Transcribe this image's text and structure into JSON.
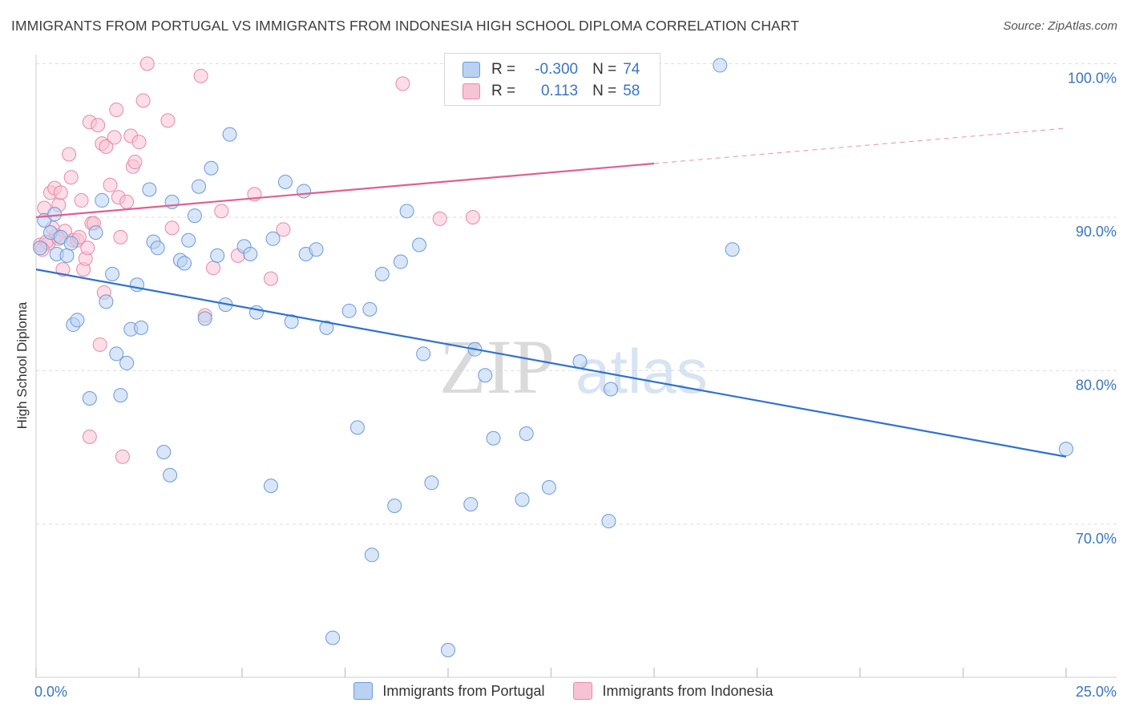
{
  "title": "IMMIGRANTS FROM PORTUGAL VS IMMIGRANTS FROM INDONESIA HIGH SCHOOL DIPLOMA CORRELATION CHART",
  "source": "Source: ZipAtlas.com",
  "watermark": {
    "zip": "ZIP",
    "atlas": "atlas"
  },
  "legend": {
    "r_label": "R =",
    "n_label": "N =",
    "portugal": {
      "r": "-0.300",
      "n": "74"
    },
    "indonesia": {
      "r": "0.113",
      "n": "58"
    }
  },
  "colors": {
    "portugal_fill": "#b9d2f2",
    "portugal_stroke": "#6a9ad8",
    "portugal_line": "#2f72cf",
    "indonesia_fill": "#f7c3d4",
    "indonesia_stroke": "#e889a8",
    "indonesia_line": "#e0608e",
    "tick_label": "#3a75c4",
    "grid": "#dddddd"
  },
  "chart_data": {
    "type": "scatter",
    "title": "IMMIGRANTS FROM PORTUGAL VS IMMIGRANTS FROM INDONESIA HIGH SCHOOL DIPLOMA CORRELATION CHART",
    "xlabel": "",
    "ylabel": "High School Diploma",
    "xlim": [
      0,
      25
    ],
    "ylim": [
      60,
      100
    ],
    "x_tick_labels": [
      "0.0%",
      "25.0%"
    ],
    "y_ticks": [
      70,
      80,
      90,
      100
    ],
    "y_tick_labels": [
      "70.0%",
      "80.0%",
      "90.0%",
      "100.0%"
    ],
    "grid": true,
    "legend_position": "bottom",
    "series": [
      {
        "name": "Immigrants from Portugal",
        "r": -0.3,
        "n": 74,
        "trend": {
          "x": [
            0,
            25
          ],
          "y": [
            86.6,
            74.4
          ]
        },
        "points": [
          [
            0.1,
            88.0
          ],
          [
            0.2,
            89.8
          ],
          [
            0.35,
            89.0
          ],
          [
            0.45,
            90.2
          ],
          [
            0.5,
            87.6
          ],
          [
            0.6,
            88.7
          ],
          [
            0.75,
            87.5
          ],
          [
            0.85,
            88.3
          ],
          [
            0.9,
            83.0
          ],
          [
            1.0,
            83.3
          ],
          [
            1.3,
            78.2
          ],
          [
            1.45,
            89.0
          ],
          [
            1.6,
            91.1
          ],
          [
            1.7,
            84.5
          ],
          [
            1.85,
            86.3
          ],
          [
            1.95,
            81.1
          ],
          [
            2.05,
            78.4
          ],
          [
            2.2,
            80.5
          ],
          [
            2.3,
            82.7
          ],
          [
            2.45,
            85.6
          ],
          [
            2.55,
            82.8
          ],
          [
            2.75,
            91.8
          ],
          [
            2.85,
            88.4
          ],
          [
            2.95,
            88.0
          ],
          [
            3.1,
            74.7
          ],
          [
            3.25,
            73.2
          ],
          [
            3.3,
            91.0
          ],
          [
            3.5,
            87.2
          ],
          [
            3.6,
            87.0
          ],
          [
            3.7,
            88.5
          ],
          [
            3.85,
            90.1
          ],
          [
            3.95,
            92.0
          ],
          [
            4.1,
            83.4
          ],
          [
            4.25,
            93.2
          ],
          [
            4.4,
            87.5
          ],
          [
            4.6,
            84.3
          ],
          [
            4.7,
            95.4
          ],
          [
            5.05,
            88.1
          ],
          [
            5.2,
            87.6
          ],
          [
            5.35,
            83.8
          ],
          [
            5.7,
            72.5
          ],
          [
            5.75,
            88.6
          ],
          [
            6.05,
            92.3
          ],
          [
            6.2,
            83.2
          ],
          [
            6.5,
            91.7
          ],
          [
            6.55,
            87.6
          ],
          [
            6.8,
            87.9
          ],
          [
            7.05,
            82.8
          ],
          [
            7.2,
            62.6
          ],
          [
            7.6,
            83.9
          ],
          [
            7.8,
            76.3
          ],
          [
            8.1,
            84.0
          ],
          [
            8.15,
            68.0
          ],
          [
            8.4,
            86.3
          ],
          [
            8.7,
            71.2
          ],
          [
            8.85,
            87.1
          ],
          [
            9.0,
            90.4
          ],
          [
            9.3,
            88.2
          ],
          [
            9.4,
            81.1
          ],
          [
            9.6,
            72.7
          ],
          [
            10.0,
            61.8
          ],
          [
            10.55,
            71.3
          ],
          [
            10.65,
            81.4
          ],
          [
            10.9,
            79.7
          ],
          [
            11.1,
            75.6
          ],
          [
            11.8,
            71.6
          ],
          [
            11.9,
            75.9
          ],
          [
            12.45,
            72.4
          ],
          [
            13.2,
            80.6
          ],
          [
            13.9,
            70.2
          ],
          [
            13.95,
            78.8
          ],
          [
            14.0,
            99.9
          ],
          [
            16.6,
            99.9
          ],
          [
            16.9,
            87.9
          ],
          [
            25.0,
            74.9
          ]
        ]
      },
      {
        "name": "Immigrants from Indonesia",
        "r": 0.113,
        "n": 58,
        "trend": {
          "x": [
            0,
            15
          ],
          "y": [
            90.0,
            93.5
          ]
        },
        "trend_dashed": {
          "x": [
            15,
            25
          ],
          "y": [
            93.5,
            95.8
          ]
        },
        "points": [
          [
            0.1,
            88.2
          ],
          [
            0.2,
            90.6
          ],
          [
            0.3,
            88.3
          ],
          [
            0.35,
            91.6
          ],
          [
            0.45,
            91.9
          ],
          [
            0.5,
            88.8
          ],
          [
            0.55,
            90.8
          ],
          [
            0.6,
            91.6
          ],
          [
            0.65,
            86.6
          ],
          [
            0.7,
            89.1
          ],
          [
            0.8,
            94.1
          ],
          [
            0.85,
            92.6
          ],
          [
            0.9,
            88.5
          ],
          [
            1.0,
            88.5
          ],
          [
            1.05,
            88.7
          ],
          [
            1.1,
            91.1
          ],
          [
            1.15,
            86.6
          ],
          [
            1.2,
            87.3
          ],
          [
            1.3,
            96.2
          ],
          [
            1.35,
            89.6
          ],
          [
            1.4,
            89.6
          ],
          [
            1.5,
            96.0
          ],
          [
            1.55,
            81.7
          ],
          [
            1.6,
            94.8
          ],
          [
            1.65,
            85.1
          ],
          [
            1.7,
            94.6
          ],
          [
            1.8,
            92.1
          ],
          [
            1.9,
            95.2
          ],
          [
            1.95,
            97.0
          ],
          [
            2.0,
            91.3
          ],
          [
            2.05,
            88.7
          ],
          [
            2.1,
            74.4
          ],
          [
            2.2,
            91.0
          ],
          [
            2.3,
            95.3
          ],
          [
            2.35,
            93.3
          ],
          [
            2.4,
            93.6
          ],
          [
            2.5,
            94.9
          ],
          [
            2.6,
            97.6
          ],
          [
            2.7,
            100.0
          ],
          [
            3.2,
            96.3
          ],
          [
            3.3,
            89.3
          ],
          [
            4.0,
            99.2
          ],
          [
            4.1,
            83.6
          ],
          [
            4.3,
            86.7
          ],
          [
            4.5,
            90.4
          ],
          [
            4.9,
            87.5
          ],
          [
            5.3,
            91.5
          ],
          [
            5.7,
            86.0
          ],
          [
            6.0,
            89.2
          ],
          [
            8.9,
            98.7
          ],
          [
            9.8,
            89.9
          ],
          [
            10.6,
            90.0
          ],
          [
            1.3,
            75.7
          ],
          [
            0.25,
            88.4
          ],
          [
            0.4,
            89.3
          ],
          [
            0.15,
            87.9
          ],
          [
            0.55,
            88.6
          ],
          [
            1.25,
            88.0
          ]
        ]
      }
    ]
  },
  "bottom_legend": [
    "Immigrants from Portugal",
    "Immigrants from Indonesia"
  ]
}
